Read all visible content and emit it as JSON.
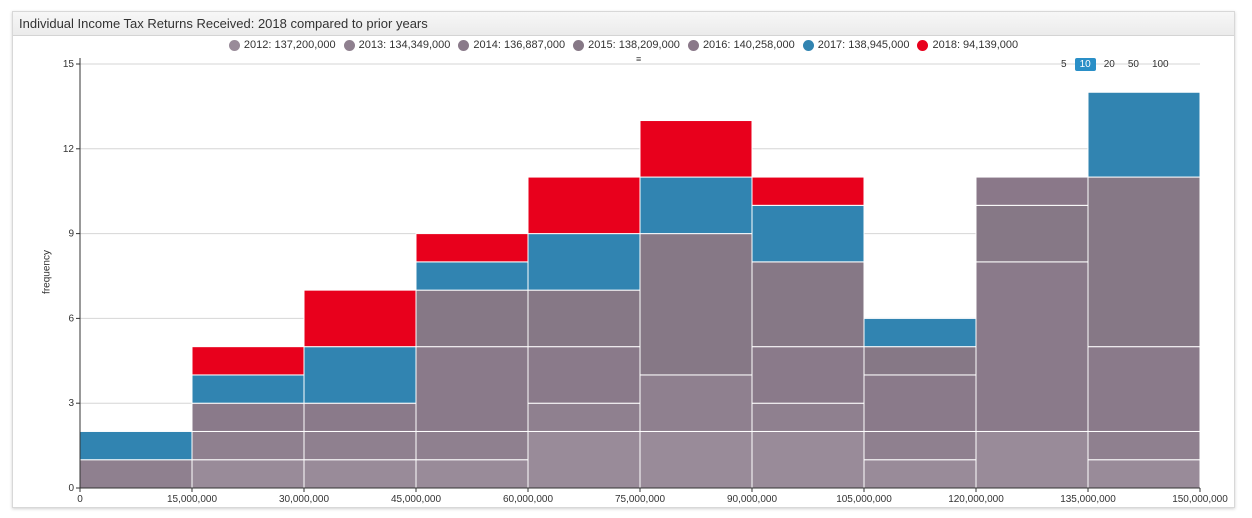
{
  "header": {
    "title": "Individual Income Tax Returns Received: 2018 compared to prior years"
  },
  "legend": [
    {
      "label": "2012: 137,200,000",
      "color": "#998b99"
    },
    {
      "label": "2013: 134,349,000",
      "color": "#8f808f"
    },
    {
      "label": "2014: 136,887,000",
      "color": "#8a7a8a"
    },
    {
      "label": "2015: 138,209,000",
      "color": "#867886"
    },
    {
      "label": "2016: 140,258,000",
      "color": "#8a7889"
    },
    {
      "label": "2017: 138,945,000",
      "color": "#3184b1"
    },
    {
      "label": "2018: 94,139,000",
      "color": "#e8001c"
    }
  ],
  "menu_icon": "≡",
  "range_buttons": [
    "5",
    "10",
    "20",
    "50",
    "100"
  ],
  "range_active": "10",
  "chart_data": {
    "type": "bar",
    "stacked": true,
    "histogram": true,
    "title": "",
    "xlabel": "",
    "ylabel": "frequency",
    "ylim": [
      0,
      15
    ],
    "yticks": [
      "0",
      "3",
      "6",
      "9",
      "12",
      "15"
    ],
    "bin_edges": [
      "0",
      "15,000,000",
      "30,000,000",
      "45,000,000",
      "60,000,000",
      "75,000,000",
      "90,000,000",
      "105,000,000",
      "120,000,000",
      "135,000,000",
      "150,000,000"
    ],
    "series": [
      {
        "name": "2012: 137,200,000",
        "color": "#998b99",
        "values": [
          0,
          1,
          1,
          1,
          2,
          2,
          2,
          1,
          2,
          1
        ]
      },
      {
        "name": "2013: 134,349,000",
        "color": "#8f808f",
        "values": [
          1,
          1,
          1,
          1,
          1,
          2,
          1,
          1,
          0,
          1
        ]
      },
      {
        "name": "2014: 136,887,000",
        "color": "#8a7a8a",
        "values": [
          0,
          1,
          1,
          3,
          2,
          0,
          2,
          2,
          6,
          3
        ]
      },
      {
        "name": "2015: 138,209,000",
        "color": "#867886",
        "values": [
          0,
          0,
          0,
          2,
          2,
          5,
          3,
          1,
          2,
          6
        ]
      },
      {
        "name": "2016: 140,258,000",
        "color": "#8a7889",
        "values": [
          0,
          0,
          0,
          0,
          0,
          0,
          0,
          0,
          1,
          0
        ]
      },
      {
        "name": "2017: 138,945,000",
        "color": "#3184b1",
        "values": [
          1,
          1,
          2,
          1,
          2,
          2,
          2,
          1,
          0,
          3
        ]
      },
      {
        "name": "2018: 94,139,000",
        "color": "#e8001c",
        "values": [
          0,
          1,
          2,
          1,
          2,
          2,
          1,
          0,
          0,
          0
        ]
      }
    ]
  }
}
